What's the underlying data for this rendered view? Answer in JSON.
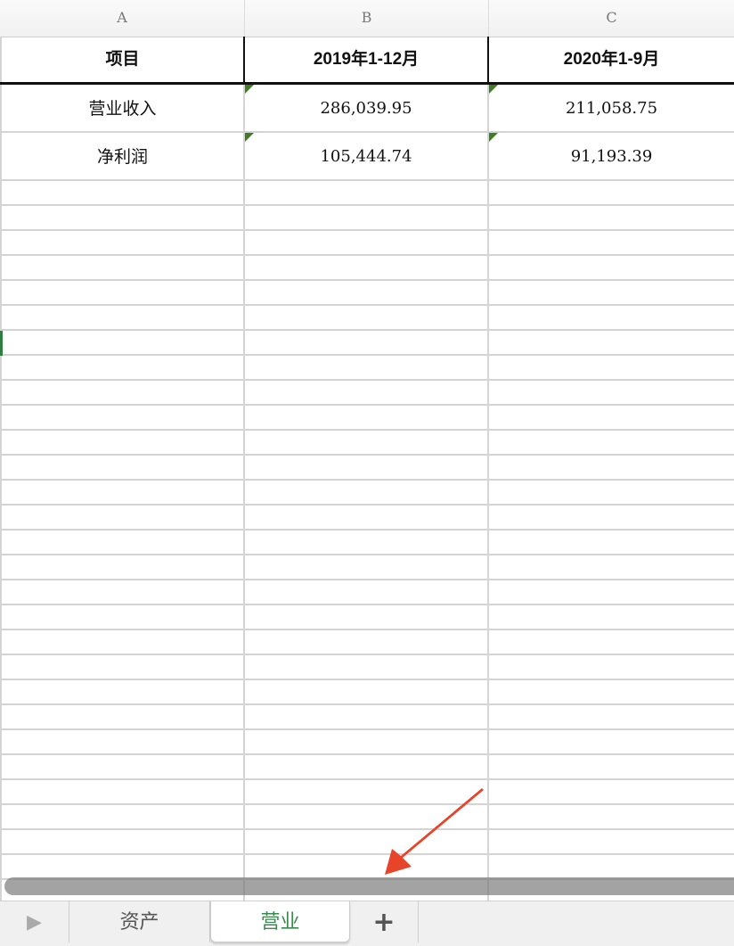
{
  "column_headers": [
    "A",
    "B",
    "C"
  ],
  "table": {
    "header": [
      "项目",
      "2019年1-12月",
      "2020年1-9月"
    ],
    "rows": [
      [
        "营业收入",
        "286,039.95",
        "211,058.75"
      ],
      [
        "净利润",
        "105,444.74",
        "91,193.39"
      ]
    ]
  },
  "sheet_tabs": {
    "tabs": [
      {
        "label": "资产",
        "active": false
      },
      {
        "label": "营业",
        "active": true
      }
    ],
    "add_icon": "plus-icon",
    "nav_icon": "play-triangle-icon"
  },
  "colors": {
    "accent": "#3a8a50",
    "annotation_arrow": "#e8442a",
    "number_marker": "#3f7d22"
  }
}
